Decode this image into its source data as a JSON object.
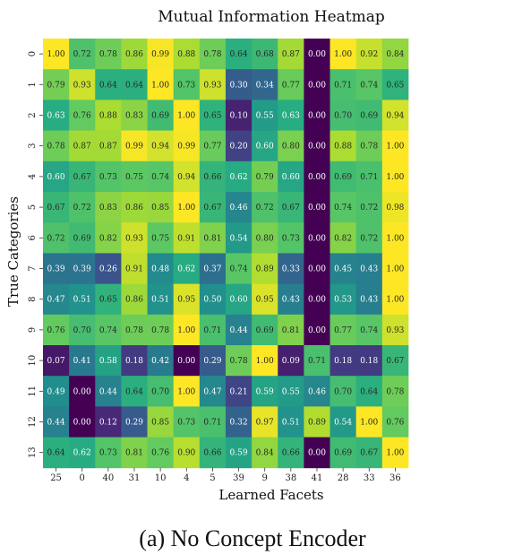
{
  "chart_data": {
    "type": "heatmap",
    "title": "Mutual Information Heatmap",
    "xlabel": "Learned Facets",
    "ylabel": "True Categories",
    "x_categories": [
      "25",
      "0",
      "40",
      "31",
      "10",
      "4",
      "5",
      "39",
      "9",
      "38",
      "41",
      "28",
      "33",
      "36"
    ],
    "y_categories": [
      "0",
      "1",
      "2",
      "3",
      "4",
      "5",
      "6",
      "7",
      "8",
      "9",
      "10",
      "11",
      "12",
      "13"
    ],
    "values": [
      [
        1.0,
        0.72,
        0.78,
        0.86,
        0.99,
        0.88,
        0.78,
        0.64,
        0.68,
        0.87,
        0.0,
        1.0,
        0.92,
        0.84
      ],
      [
        0.79,
        0.93,
        0.64,
        0.64,
        1.0,
        0.73,
        0.93,
        0.3,
        0.34,
        0.77,
        0.0,
        0.71,
        0.74,
        0.65
      ],
      [
        0.63,
        0.76,
        0.88,
        0.83,
        0.69,
        1.0,
        0.65,
        0.1,
        0.55,
        0.63,
        0.0,
        0.7,
        0.69,
        0.94
      ],
      [
        0.78,
        0.87,
        0.87,
        0.99,
        0.94,
        0.99,
        0.77,
        0.2,
        0.6,
        0.8,
        0.0,
        0.88,
        0.78,
        1.0
      ],
      [
        0.6,
        0.67,
        0.73,
        0.75,
        0.74,
        0.94,
        0.66,
        0.62,
        0.79,
        0.6,
        0.0,
        0.69,
        0.71,
        1.0
      ],
      [
        0.67,
        0.72,
        0.83,
        0.86,
        0.85,
        1.0,
        0.67,
        0.46,
        0.72,
        0.67,
        0.0,
        0.74,
        0.72,
        0.98
      ],
      [
        0.72,
        0.69,
        0.82,
        0.93,
        0.75,
        0.91,
        0.81,
        0.54,
        0.8,
        0.73,
        0.0,
        0.82,
        0.72,
        1.0
      ],
      [
        0.39,
        0.39,
        0.26,
        0.91,
        0.48,
        0.62,
        0.37,
        0.74,
        0.89,
        0.33,
        0.0,
        0.45,
        0.43,
        1.0
      ],
      [
        0.47,
        0.51,
        0.65,
        0.86,
        0.51,
        0.95,
        0.5,
        0.6,
        0.95,
        0.43,
        0.0,
        0.53,
        0.43,
        1.0
      ],
      [
        0.76,
        0.7,
        0.74,
        0.78,
        0.78,
        1.0,
        0.71,
        0.44,
        0.69,
        0.81,
        0.0,
        0.77,
        0.74,
        0.93
      ],
      [
        0.07,
        0.41,
        0.58,
        0.18,
        0.42,
        0.0,
        0.29,
        0.78,
        1.0,
        0.09,
        0.71,
        0.18,
        0.18,
        0.67
      ],
      [
        0.49,
        0.0,
        0.44,
        0.64,
        0.7,
        1.0,
        0.47,
        0.21,
        0.59,
        0.55,
        0.46,
        0.7,
        0.64,
        0.78
      ],
      [
        0.44,
        0.0,
        0.12,
        0.29,
        0.85,
        0.73,
        0.71,
        0.32,
        0.97,
        0.51,
        0.89,
        0.54,
        1.0,
        0.76
      ],
      [
        0.64,
        0.62,
        0.73,
        0.81,
        0.76,
        0.9,
        0.66,
        0.59,
        0.84,
        0.66,
        0.0,
        0.69,
        0.67,
        1.0
      ]
    ],
    "colormap": "viridis",
    "value_range": [
      0,
      1
    ],
    "annotated": true,
    "value_format": "2 decimals"
  },
  "caption": "(a) No Concept Encoder"
}
